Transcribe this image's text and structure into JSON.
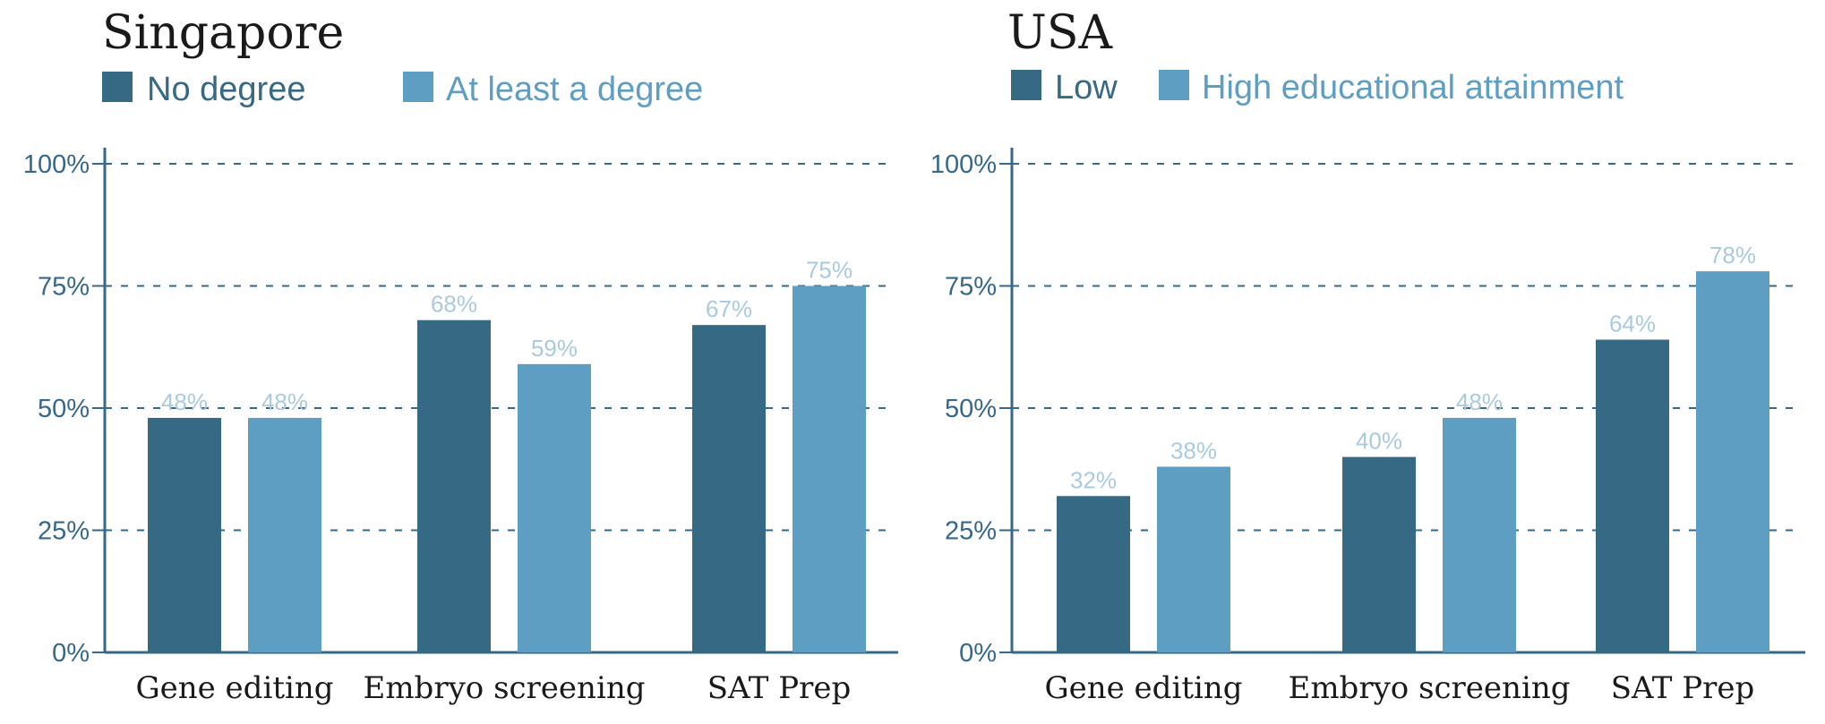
{
  "colors": {
    "series_dark": "#356984",
    "series_light": "#5f9ec3",
    "axis": "#35688a",
    "data_label": "#a9cadf"
  },
  "chart_data": [
    {
      "type": "bar",
      "title": "Singapore",
      "categories": [
        "Gene editing",
        "Embryo screening",
        "SAT Prep"
      ],
      "series": [
        {
          "name": "No degree",
          "values": [
            48,
            68,
            67
          ],
          "labels": [
            "48%",
            "68%",
            "67%"
          ]
        },
        {
          "name": "At least a degree",
          "values": [
            48,
            59,
            75
          ],
          "labels": [
            "48%",
            "59%",
            "75%"
          ]
        }
      ],
      "yticks": [
        "0%",
        "25%",
        "50%",
        "75%",
        "100%"
      ],
      "ytick_values": [
        0,
        25,
        50,
        75,
        100
      ],
      "ylim": [
        0,
        100
      ],
      "grid": true,
      "legend": "top-left"
    },
    {
      "type": "bar",
      "title": "USA",
      "categories": [
        "Gene editing",
        "Embryo screening",
        "SAT Prep"
      ],
      "series": [
        {
          "name": "Low",
          "values": [
            32,
            40,
            64
          ],
          "labels": [
            "32%",
            "40%",
            "64%"
          ]
        },
        {
          "name": "High educational attainment",
          "values": [
            38,
            48,
            78
          ],
          "labels": [
            "38%",
            "48%",
            "78%"
          ]
        }
      ],
      "yticks": [
        "0%",
        "25%",
        "50%",
        "75%",
        "100%"
      ],
      "ytick_values": [
        0,
        25,
        50,
        75,
        100
      ],
      "ylim": [
        0,
        100
      ],
      "grid": true,
      "legend": "top-left"
    }
  ]
}
